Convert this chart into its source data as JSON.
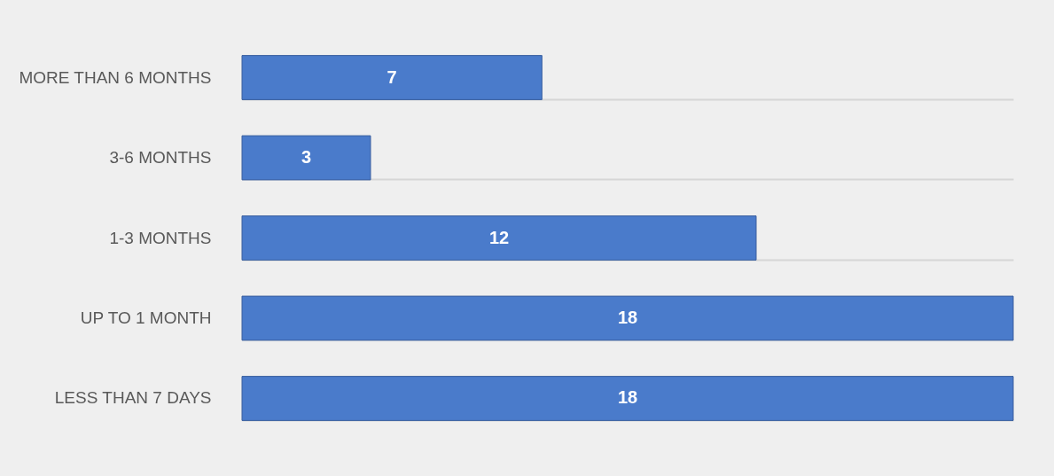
{
  "chart_data": {
    "type": "bar",
    "orientation": "horizontal",
    "categories": [
      "MORE THAN 6 MONTHS",
      "3-6 MONTHS",
      "1-3 MONTHS",
      "UP TO 1 MONTH",
      "LESS THAN 7 DAYS"
    ],
    "values": [
      7,
      3,
      12,
      18,
      18
    ],
    "color": "#4a7bcb",
    "data_labels": true,
    "grid": "y",
    "tick_labels": "y"
  }
}
